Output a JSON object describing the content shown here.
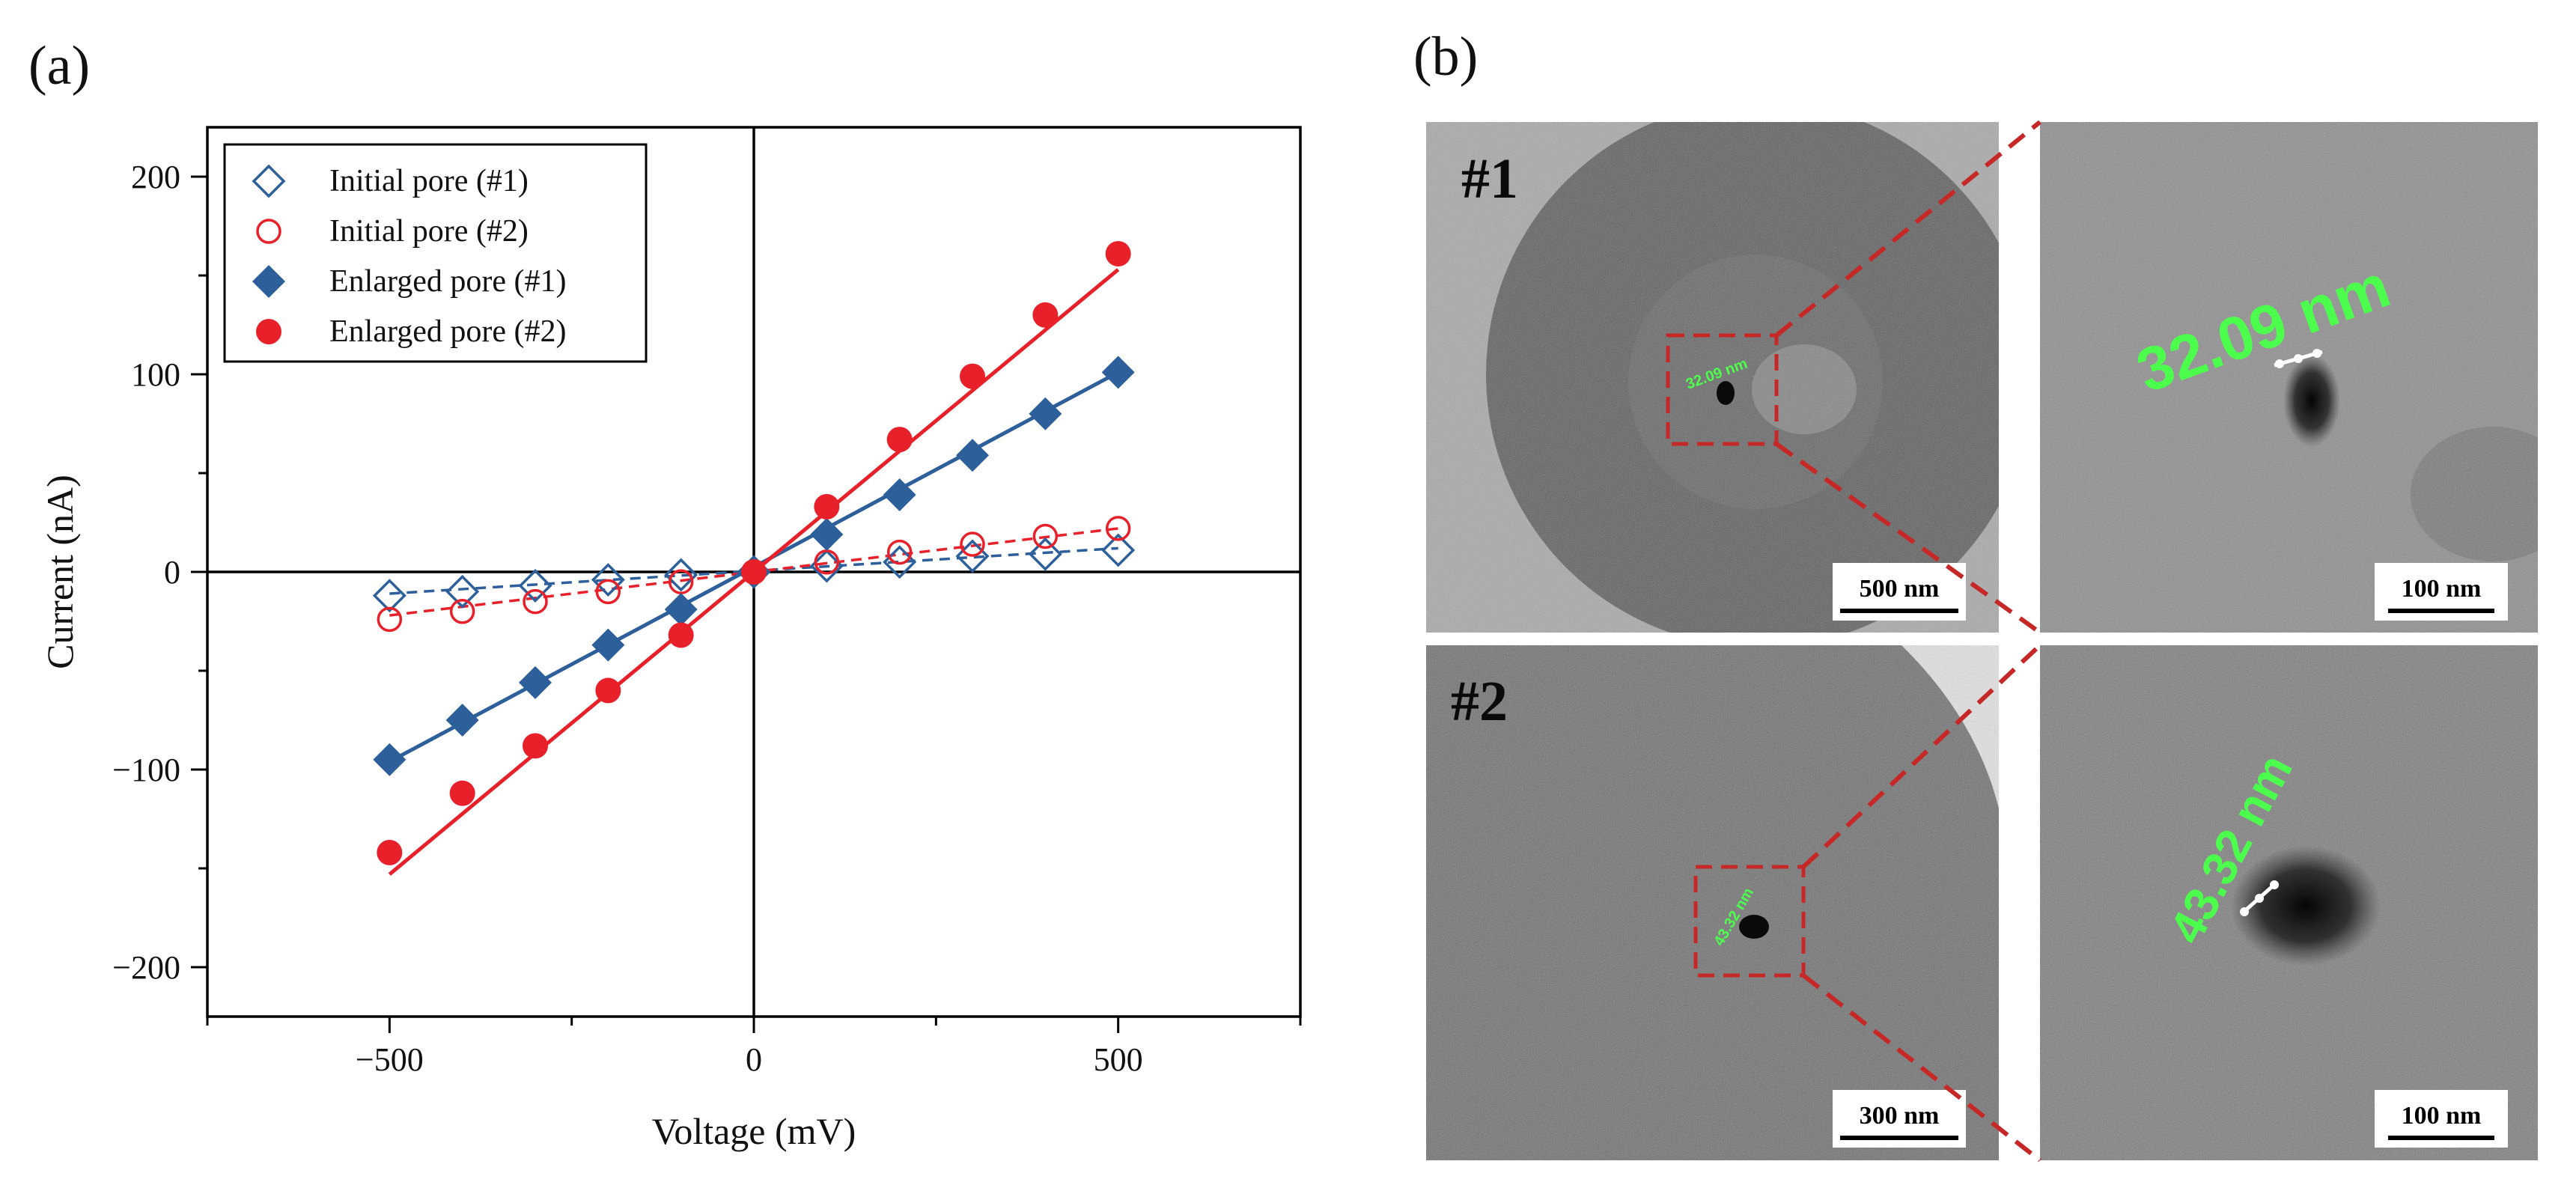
{
  "figure": {
    "panel_a_label": "(a)",
    "panel_b_label": "(b)"
  },
  "chart_data": {
    "type": "scatter",
    "xlabel": "Voltage (mV)",
    "ylabel": "Current (nA)",
    "xlim": [
      -750,
      750
    ],
    "ylim": [
      -225,
      225
    ],
    "xticks": [
      -500,
      0,
      500
    ],
    "yticks": [
      -200,
      -100,
      0,
      100,
      200
    ],
    "xtick_labels": [
      "−500",
      "0",
      "500"
    ],
    "ytick_labels": [
      "−200",
      "−100",
      "0",
      "100",
      "200"
    ],
    "legend_position": "top-left",
    "series": [
      {
        "name": "Initial pore (#1)",
        "marker": "diamond-open",
        "color": "#2d5f9a",
        "line": "dashed",
        "x": [
          -500,
          -400,
          -300,
          -200,
          -100,
          0,
          100,
          200,
          300,
          400,
          500
        ],
        "y": [
          -12,
          -10,
          -7,
          -4,
          -1.5,
          0,
          3,
          5,
          8,
          9,
          11
        ],
        "fit": [
          [
            -500,
            -11
          ],
          [
            500,
            12
          ]
        ]
      },
      {
        "name": "Initial pore (#2)",
        "marker": "circle-open",
        "color": "#e8202a",
        "line": "dashed",
        "x": [
          -500,
          -400,
          -300,
          -200,
          -100,
          0,
          100,
          200,
          300,
          400,
          500
        ],
        "y": [
          -24,
          -20,
          -15,
          -10,
          -5,
          0,
          5,
          10,
          14,
          18,
          22
        ],
        "fit": [
          [
            -500,
            -22
          ],
          [
            500,
            22
          ]
        ]
      },
      {
        "name": "Enlarged pore (#1)",
        "marker": "diamond",
        "color": "#2d5f9a",
        "line": "solid",
        "x": [
          -500,
          -400,
          -300,
          -200,
          -100,
          0,
          100,
          200,
          300,
          400,
          500
        ],
        "y": [
          -95,
          -75,
          -56,
          -37,
          -19,
          0,
          19,
          39,
          59,
          80,
          101
        ],
        "fit": [
          [
            -500,
            -96
          ],
          [
            500,
            101
          ]
        ]
      },
      {
        "name": "Enlarged pore (#2)",
        "marker": "circle",
        "color": "#e8202a",
        "line": "solid",
        "x": [
          -500,
          -400,
          -300,
          -200,
          -100,
          0,
          100,
          200,
          300,
          400,
          500
        ],
        "y": [
          -142,
          -112,
          -88,
          -60,
          -32,
          0,
          33,
          67,
          99,
          130,
          161
        ],
        "fit": [
          [
            -500,
            -153
          ],
          [
            500,
            153
          ]
        ]
      }
    ]
  },
  "tem": {
    "pore1_tag": "#1",
    "pore2_tag": "#2",
    "scale_500": "500 nm",
    "scale_300": "300 nm",
    "scale_100a": "100 nm",
    "scale_100b": "100 nm",
    "meas1_small": "32.09 nm",
    "meas2_small": "43.32 nm",
    "meas1": "32.09 nm",
    "meas2": "43.32 nm"
  },
  "colors": {
    "blue": "#2d5f9a",
    "red": "#e8202a",
    "zoom_box": "#c62828",
    "measure": "#4dff4d"
  }
}
